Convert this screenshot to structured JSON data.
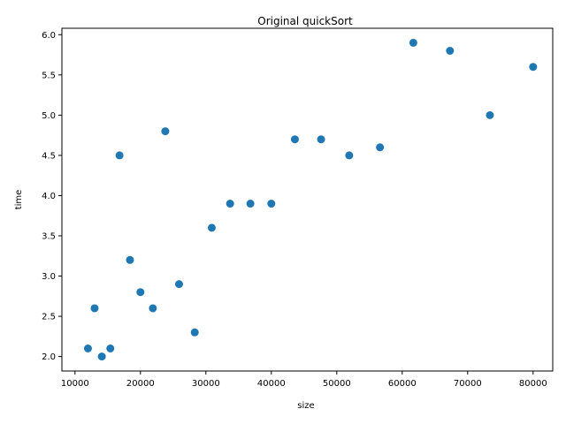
{
  "chart_data": {
    "type": "scatter",
    "title": "Original quickSort",
    "xlabel": "size",
    "ylabel": "time",
    "xlim": [
      8000,
      83000
    ],
    "ylim": [
      1.82,
      6.08
    ],
    "xticks": [
      10000,
      20000,
      30000,
      40000,
      50000,
      60000,
      70000,
      80000
    ],
    "yticks": [
      2.0,
      2.5,
      3.0,
      3.5,
      4.0,
      4.5,
      5.0,
      5.5,
      6.0
    ],
    "grid": false,
    "marker_color": "#1f77b4",
    "points": [
      {
        "x": 11980,
        "y": 2.1
      },
      {
        "x": 13000,
        "y": 2.6
      },
      {
        "x": 14100,
        "y": 2.0
      },
      {
        "x": 15400,
        "y": 2.1
      },
      {
        "x": 16800,
        "y": 4.5
      },
      {
        "x": 18400,
        "y": 3.2
      },
      {
        "x": 20000,
        "y": 2.8
      },
      {
        "x": 21900,
        "y": 2.6
      },
      {
        "x": 23800,
        "y": 4.8
      },
      {
        "x": 25900,
        "y": 2.9
      },
      {
        "x": 28300,
        "y": 2.3
      },
      {
        "x": 30900,
        "y": 3.6
      },
      {
        "x": 33700,
        "y": 3.9
      },
      {
        "x": 36800,
        "y": 3.9
      },
      {
        "x": 40000,
        "y": 3.9
      },
      {
        "x": 43600,
        "y": 4.7
      },
      {
        "x": 47600,
        "y": 4.7
      },
      {
        "x": 51900,
        "y": 4.5
      },
      {
        "x": 56600,
        "y": 4.6
      },
      {
        "x": 61700,
        "y": 5.9
      },
      {
        "x": 67300,
        "y": 5.8
      },
      {
        "x": 73400,
        "y": 5.0
      },
      {
        "x": 80000,
        "y": 5.6
      }
    ]
  }
}
